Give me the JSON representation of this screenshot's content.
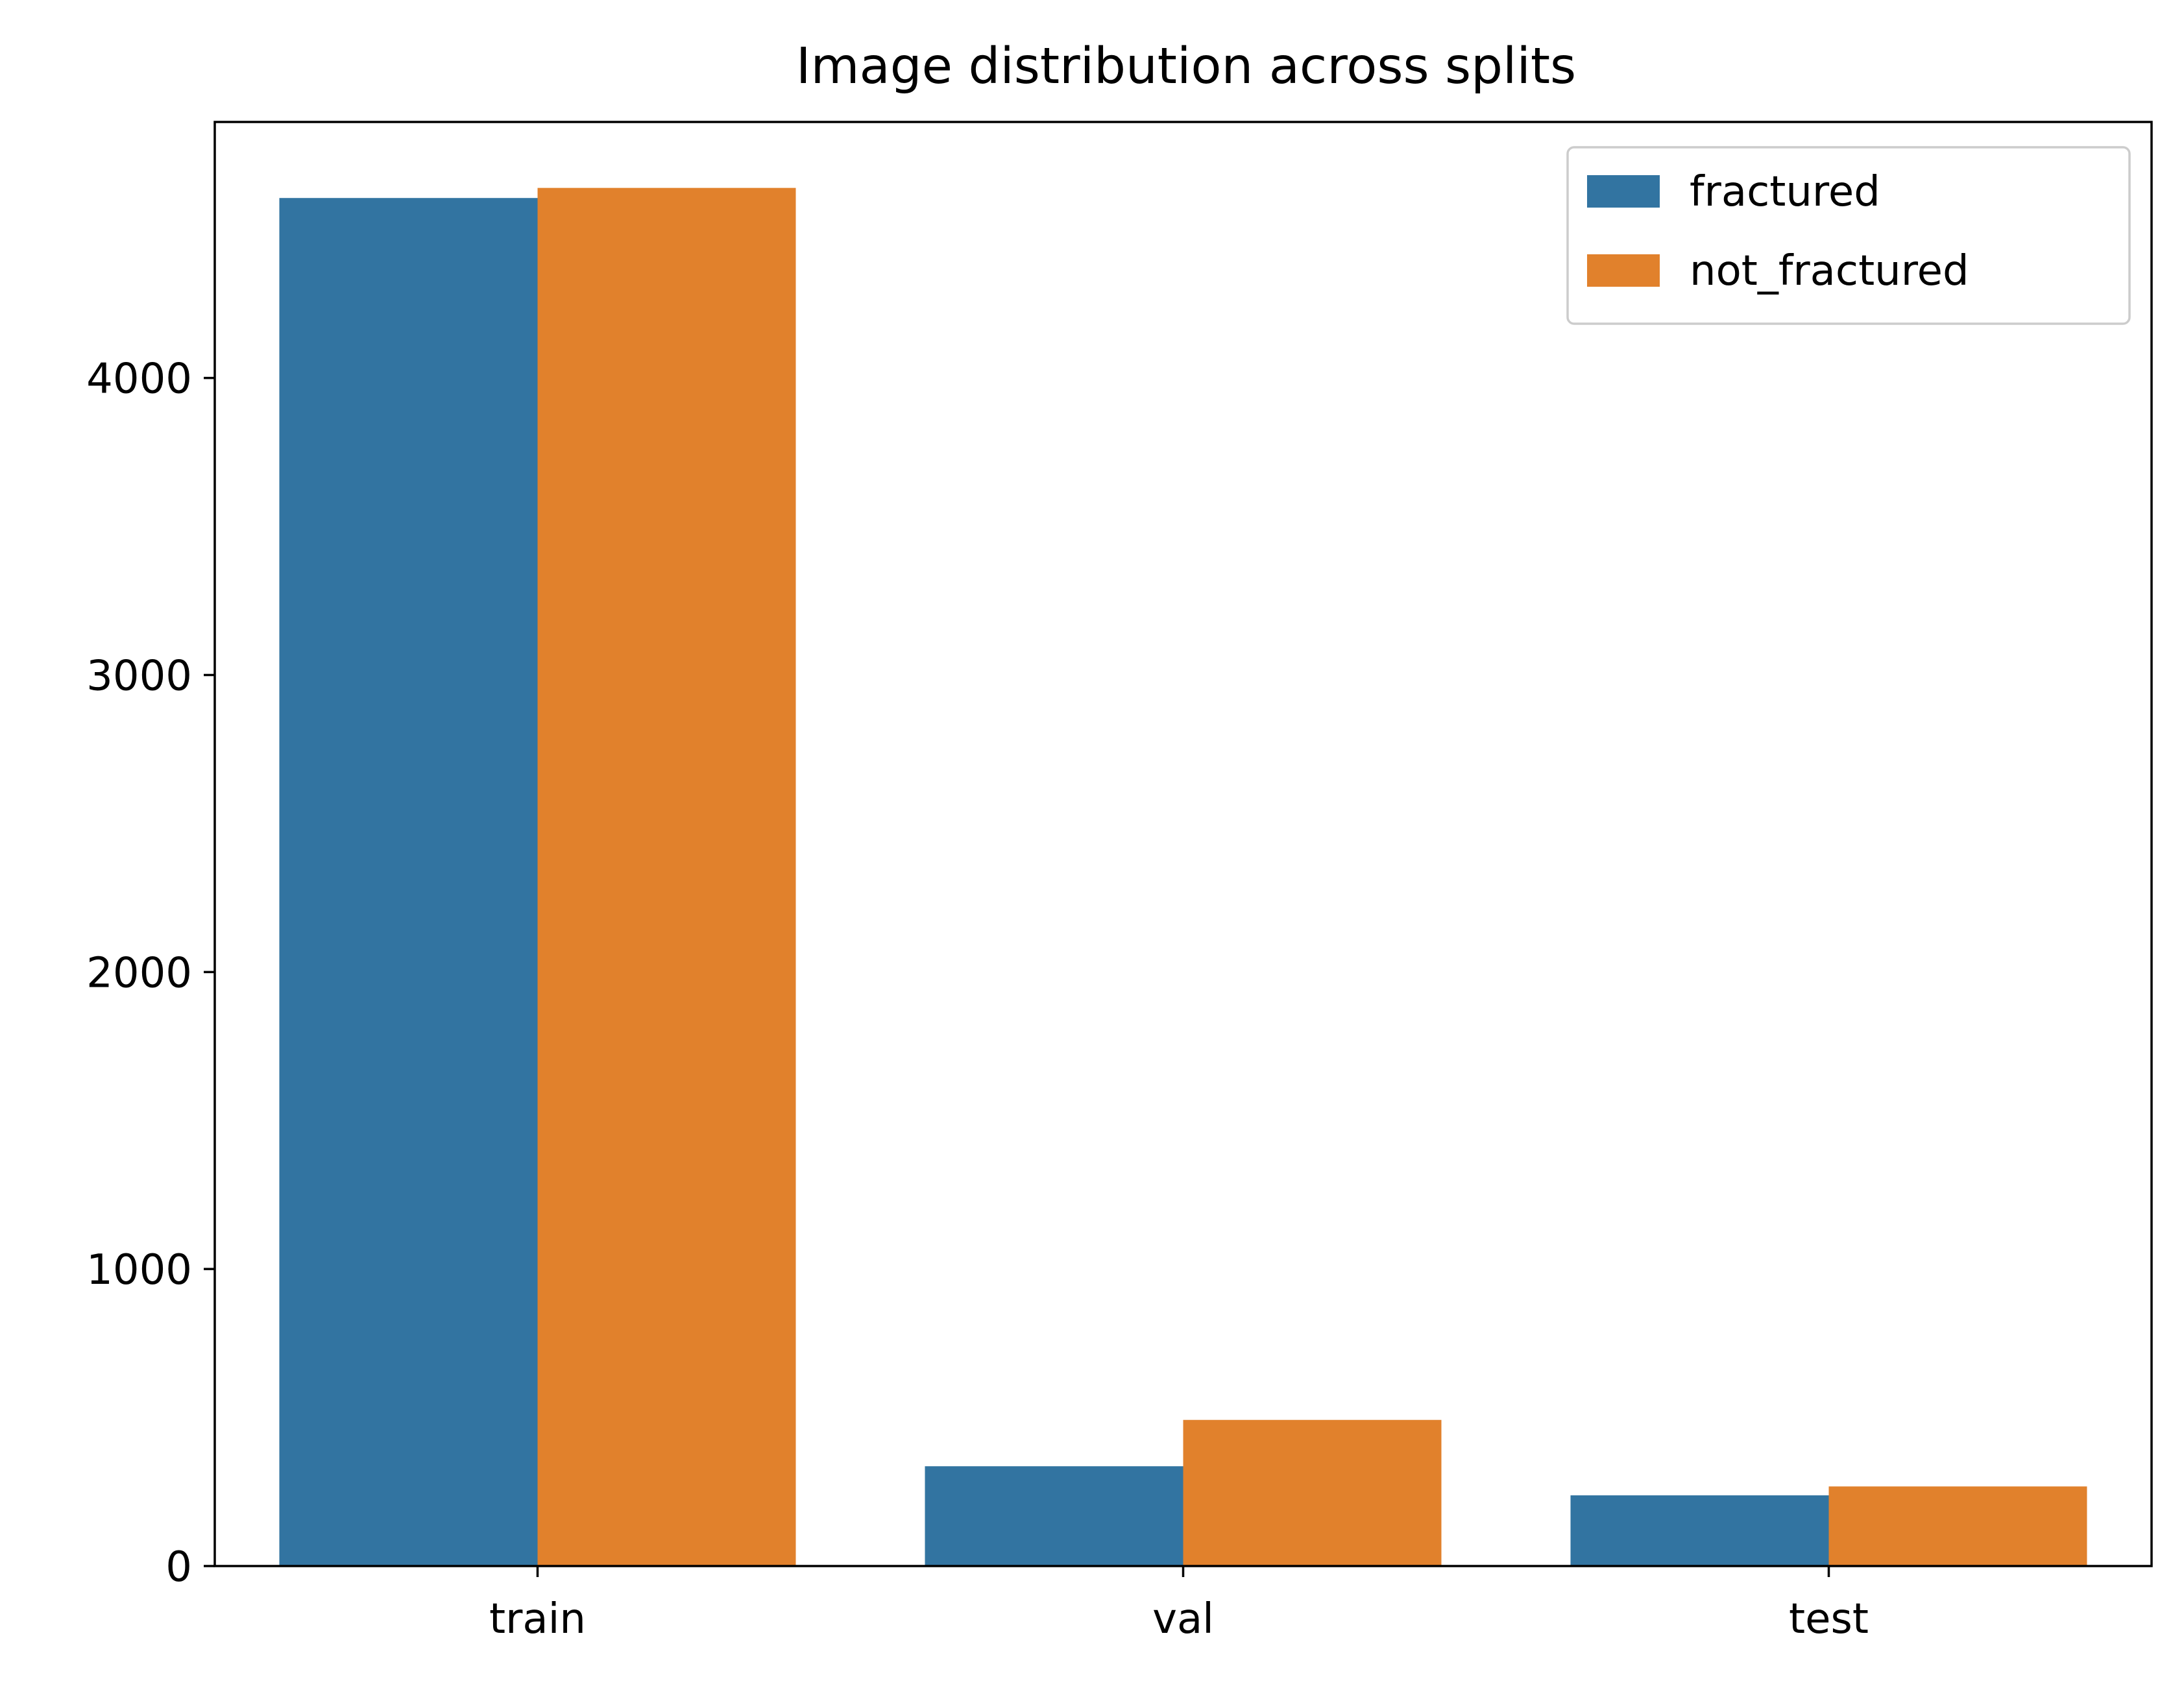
{
  "chart_data": {
    "type": "bar",
    "title": "Image distribution across splits",
    "xlabel": "",
    "ylabel": "",
    "categories": [
      "train",
      "val",
      "test"
    ],
    "series": [
      {
        "name": "fractured",
        "values": [
          4606,
          336,
          238
        ],
        "color": "#3274a1"
      },
      {
        "name": "not_fractured",
        "values": [
          4640,
          492,
          268
        ],
        "color": "#e1812c"
      }
    ],
    "ylim": [
      0,
      4862
    ],
    "yticks": [
      0,
      1000,
      2000,
      3000,
      4000
    ],
    "ytick_labels": [
      "0",
      "1000",
      "2000",
      "3000",
      "4000"
    ],
    "grid": false,
    "legend_position": "top-right"
  }
}
